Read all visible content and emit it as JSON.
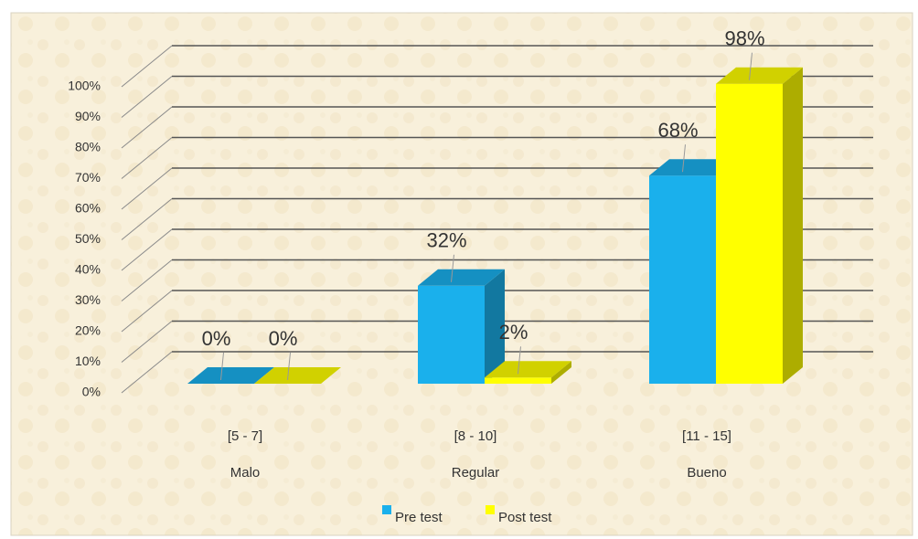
{
  "chart_data": {
    "type": "bar3d",
    "categories": [
      "[5 - 7]",
      "[8 - 10]",
      "[11 - 15]"
    ],
    "category_groups": [
      "Malo",
      "Regular",
      "Bueno"
    ],
    "series": [
      {
        "name": "Pre test",
        "color": "#1ab0ec",
        "values": [
          0,
          32,
          68
        ],
        "value_labels": [
          "0%",
          "32%",
          "68%"
        ]
      },
      {
        "name": "Post test",
        "color": "#ffff00",
        "values": [
          0,
          2,
          98
        ],
        "value_labels": [
          "0%",
          "2%",
          "98%"
        ]
      }
    ],
    "ylim": [
      0,
      100
    ],
    "yticks": [
      {
        "value": 0,
        "label": "0%"
      },
      {
        "value": 10,
        "label": "10%"
      },
      {
        "value": 20,
        "label": "20%"
      },
      {
        "value": 30,
        "label": "30%"
      },
      {
        "value": 40,
        "label": "40%"
      },
      {
        "value": 50,
        "label": "50%"
      },
      {
        "value": 60,
        "label": "60%"
      },
      {
        "value": 70,
        "label": "70%"
      },
      {
        "value": 80,
        "label": "80%"
      },
      {
        "value": 90,
        "label": "90%"
      },
      {
        "value": 100,
        "label": "100%"
      }
    ],
    "grid": true,
    "legend": "bottom"
  }
}
